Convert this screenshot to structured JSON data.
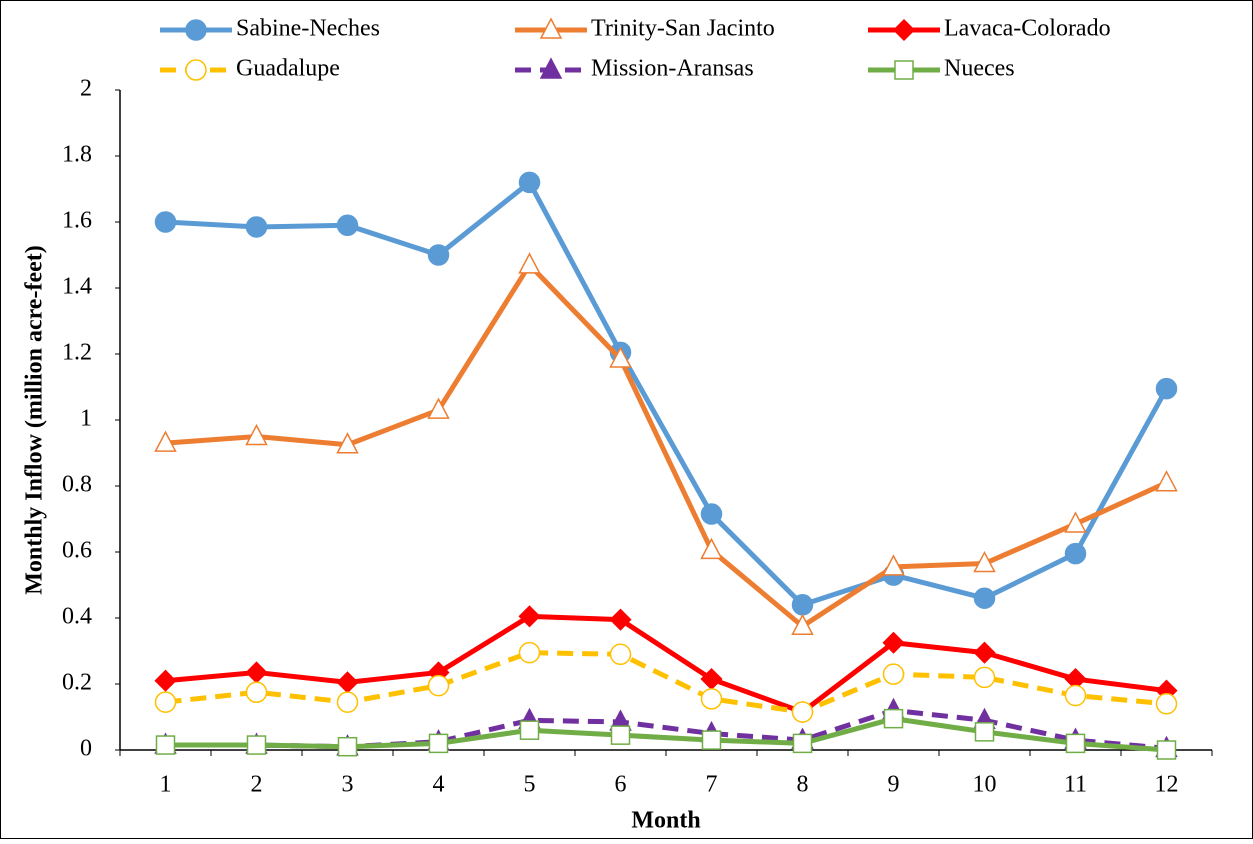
{
  "chart_data": {
    "type": "line",
    "x_label": "Month",
    "y_label": "Monthly Inflow (million acre-feet)",
    "categories": [
      "1",
      "2",
      "3",
      "4",
      "5",
      "6",
      "7",
      "8",
      "9",
      "10",
      "11",
      "12"
    ],
    "ylim": [
      0,
      2
    ],
    "yticks": [
      0,
      0.2,
      0.4,
      0.6,
      0.8,
      1,
      1.2,
      1.4,
      1.6,
      1.8,
      2
    ],
    "grid": false,
    "legend": "top",
    "series": [
      {
        "name": "Sabine-Neches",
        "color": "#5b9bd5",
        "marker": "circle",
        "filled": true,
        "dashed": false,
        "values": [
          1.6,
          1.585,
          1.59,
          1.5,
          1.72,
          1.205,
          0.715,
          0.44,
          0.53,
          0.46,
          0.595,
          1.095
        ]
      },
      {
        "name": "Trinity-San Jacinto",
        "color": "#ed7d31",
        "marker": "triangle",
        "filled": false,
        "dashed": false,
        "values": [
          0.93,
          0.95,
          0.925,
          1.03,
          1.47,
          1.185,
          0.605,
          0.375,
          0.555,
          0.565,
          0.685,
          0.81
        ]
      },
      {
        "name": "Lavaca-Colorado",
        "color": "#ff0000",
        "marker": "diamond",
        "filled": true,
        "dashed": false,
        "values": [
          0.21,
          0.235,
          0.205,
          0.235,
          0.405,
          0.395,
          0.215,
          0.115,
          0.325,
          0.295,
          0.215,
          0.18
        ]
      },
      {
        "name": "Guadalupe",
        "color": "#ffc000",
        "marker": "circle",
        "filled": false,
        "dashed": true,
        "values": [
          0.145,
          0.175,
          0.145,
          0.195,
          0.295,
          0.29,
          0.155,
          0.115,
          0.23,
          0.22,
          0.165,
          0.14
        ]
      },
      {
        "name": "Mission-Aransas",
        "color": "#7030a0",
        "marker": "triangle",
        "filled": true,
        "dashed": true,
        "values": [
          0.015,
          0.015,
          0.01,
          0.025,
          0.09,
          0.085,
          0.05,
          0.03,
          0.12,
          0.09,
          0.03,
          0.005
        ]
      },
      {
        "name": "Nueces",
        "color": "#70ad47",
        "marker": "square",
        "filled": false,
        "dashed": false,
        "values": [
          0.015,
          0.015,
          0.01,
          0.02,
          0.06,
          0.045,
          0.03,
          0.02,
          0.095,
          0.055,
          0.02,
          0
        ]
      }
    ]
  }
}
